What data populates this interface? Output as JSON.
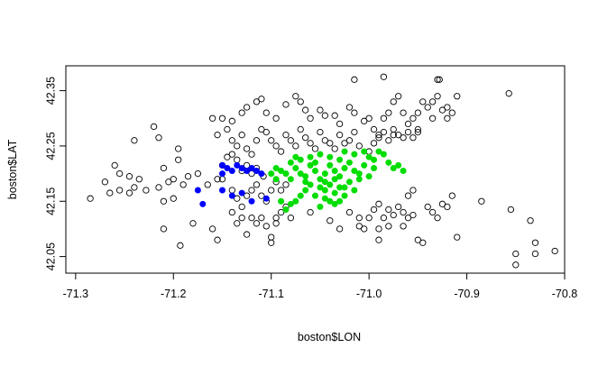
{
  "chart_data": {
    "type": "scatter",
    "title": "",
    "xlabel": "boston$LON",
    "ylabel": "boston$LAT",
    "xlim": [
      -71.31,
      -70.8
    ],
    "ylim": [
      42.02,
      42.395
    ],
    "xticks": [
      -71.3,
      -71.2,
      -71.1,
      -71.0,
      -70.9,
      -70.8
    ],
    "xtick_labels": [
      "-71.3",
      "-71.2",
      "-71.1",
      "-71.0",
      "-70.9",
      "-70.8"
    ],
    "yticks": [
      42.05,
      42.15,
      42.25,
      42.35
    ],
    "ytick_labels": [
      "42.05",
      "42.15",
      "42.25",
      "42.35"
    ],
    "grid": false,
    "legend": "none",
    "colors": {
      "open": "#000000",
      "blue": "#0000ff",
      "green": "#00dd00",
      "axis": "#000000"
    },
    "series": [
      {
        "style": "open",
        "points": [
          [
            -71.285,
            42.155
          ],
          [
            -71.265,
            42.165
          ],
          [
            -71.255,
            42.17
          ],
          [
            -71.27,
            42.185
          ],
          [
            -71.245,
            42.165
          ],
          [
            -71.24,
            42.175
          ],
          [
            -71.26,
            42.215
          ],
          [
            -71.245,
            42.195
          ],
          [
            -71.255,
            42.2
          ],
          [
            -71.235,
            42.19
          ],
          [
            -71.228,
            42.17
          ],
          [
            -71.215,
            42.175
          ],
          [
            -71.205,
            42.185
          ],
          [
            -71.2,
            42.19
          ],
          [
            -71.21,
            42.21
          ],
          [
            -71.195,
            42.225
          ],
          [
            -71.19,
            42.18
          ],
          [
            -71.175,
            42.2
          ],
          [
            -71.165,
            42.18
          ],
          [
            -71.155,
            42.19
          ],
          [
            -71.24,
            42.26
          ],
          [
            -71.22,
            42.285
          ],
          [
            -71.215,
            42.265
          ],
          [
            -71.195,
            42.245
          ],
          [
            -71.185,
            42.195
          ],
          [
            -71.2,
            42.155
          ],
          [
            -71.21,
            42.15
          ],
          [
            -71.18,
            42.11
          ],
          [
            -71.193,
            42.07
          ],
          [
            -71.21,
            42.1
          ],
          [
            -71.16,
            42.3
          ],
          [
            -71.15,
            42.3
          ],
          [
            -71.14,
            42.295
          ],
          [
            -71.13,
            42.31
          ],
          [
            -71.125,
            42.32
          ],
          [
            -71.115,
            42.33
          ],
          [
            -71.11,
            42.335
          ],
          [
            -71.105,
            42.31
          ],
          [
            -71.095,
            42.3
          ],
          [
            -71.085,
            42.325
          ],
          [
            -71.075,
            42.34
          ],
          [
            -71.07,
            42.33
          ],
          [
            -71.065,
            42.315
          ],
          [
            -71.06,
            42.3
          ],
          [
            -71.05,
            42.315
          ],
          [
            -71.045,
            42.305
          ],
          [
            -71.035,
            42.305
          ],
          [
            -71.03,
            42.29
          ],
          [
            -71.02,
            42.32
          ],
          [
            -71.015,
            42.31
          ],
          [
            -71.005,
            42.295
          ],
          [
            -70.995,
            42.28
          ],
          [
            -71.0,
            42.3
          ],
          [
            -70.985,
            42.3
          ],
          [
            -70.98,
            42.31
          ],
          [
            -70.975,
            42.33
          ],
          [
            -70.97,
            42.34
          ],
          [
            -70.965,
            42.31
          ],
          [
            -70.96,
            42.29
          ],
          [
            -70.955,
            42.3
          ],
          [
            -70.95,
            42.31
          ],
          [
            -70.945,
            42.33
          ],
          [
            -70.94,
            42.32
          ],
          [
            -70.935,
            42.33
          ],
          [
            -70.93,
            42.34
          ],
          [
            -70.925,
            42.315
          ],
          [
            -70.92,
            42.3
          ],
          [
            -70.915,
            42.31
          ],
          [
            -70.91,
            42.34
          ],
          [
            -70.928,
            42.37
          ],
          [
            -70.93,
            42.37
          ],
          [
            -70.985,
            42.375
          ],
          [
            -71.015,
            42.37
          ],
          [
            -70.92,
            42.32
          ],
          [
            -70.935,
            42.3
          ],
          [
            -70.95,
            42.28
          ],
          [
            -70.975,
            42.27
          ],
          [
            -70.99,
            42.27
          ],
          [
            -71.155,
            42.27
          ],
          [
            -71.145,
            42.28
          ],
          [
            -71.14,
            42.26
          ],
          [
            -71.135,
            42.25
          ],
          [
            -71.13,
            42.27
          ],
          [
            -71.125,
            42.245
          ],
          [
            -71.12,
            42.235
          ],
          [
            -71.115,
            42.26
          ],
          [
            -71.11,
            42.28
          ],
          [
            -71.105,
            42.275
          ],
          [
            -71.1,
            42.26
          ],
          [
            -71.095,
            42.25
          ],
          [
            -71.09,
            42.24
          ],
          [
            -71.085,
            42.27
          ],
          [
            -71.08,
            42.26
          ],
          [
            -71.075,
            42.25
          ],
          [
            -71.07,
            42.28
          ],
          [
            -71.065,
            42.265
          ],
          [
            -71.06,
            42.255
          ],
          [
            -71.055,
            42.245
          ],
          [
            -71.05,
            42.275
          ],
          [
            -71.045,
            42.26
          ],
          [
            -71.04,
            42.255
          ],
          [
            -71.035,
            42.245
          ],
          [
            -71.03,
            42.27
          ],
          [
            -71.025,
            42.255
          ],
          [
            -71.02,
            42.26
          ],
          [
            -71.015,
            42.275
          ],
          [
            -71.01,
            42.25
          ],
          [
            -71.0,
            42.24
          ],
          [
            -70.995,
            42.255
          ],
          [
            -70.99,
            42.265
          ],
          [
            -70.985,
            42.275
          ],
          [
            -70.98,
            42.26
          ],
          [
            -70.975,
            42.28
          ],
          [
            -70.97,
            42.27
          ],
          [
            -70.965,
            42.265
          ],
          [
            -70.96,
            42.275
          ],
          [
            -70.955,
            42.265
          ],
          [
            -70.95,
            42.275
          ],
          [
            -71.135,
            42.225
          ],
          [
            -71.14,
            42.235
          ],
          [
            -71.145,
            42.23
          ],
          [
            -71.15,
            42.215
          ],
          [
            -71.13,
            42.205
          ],
          [
            -71.125,
            42.215
          ],
          [
            -71.12,
            42.2
          ],
          [
            -71.115,
            42.21
          ],
          [
            -71.108,
            42.195
          ],
          [
            -71.15,
            42.19
          ],
          [
            -71.14,
            42.17
          ],
          [
            -71.135,
            42.155
          ],
          [
            -71.13,
            42.14
          ],
          [
            -71.125,
            42.16
          ],
          [
            -71.12,
            42.17
          ],
          [
            -71.115,
            42.18
          ],
          [
            -71.11,
            42.16
          ],
          [
            -71.105,
            42.15
          ],
          [
            -71.1,
            42.17
          ],
          [
            -71.095,
            42.185
          ],
          [
            -71.09,
            42.17
          ],
          [
            -71.085,
            42.18
          ],
          [
            -71.16,
            42.1
          ],
          [
            -71.155,
            42.08
          ],
          [
            -71.14,
            42.13
          ],
          [
            -71.135,
            42.11
          ],
          [
            -71.13,
            42.12
          ],
          [
            -71.125,
            42.09
          ],
          [
            -71.12,
            42.12
          ],
          [
            -71.11,
            42.12
          ],
          [
            -71.105,
            42.105
          ],
          [
            -71.1,
            42.085
          ],
          [
            -71.095,
            42.11
          ],
          [
            -71.09,
            42.13
          ],
          [
            -71.085,
            42.14
          ],
          [
            -71.08,
            42.12
          ],
          [
            -71.1,
            42.075
          ],
          [
            -71.06,
            42.13
          ],
          [
            -71.04,
            42.115
          ],
          [
            -71.02,
            42.13
          ],
          [
            -71.01,
            42.12
          ],
          [
            -71.005,
            42.1
          ],
          [
            -70.995,
            42.135
          ],
          [
            -70.99,
            42.145
          ],
          [
            -70.985,
            42.12
          ],
          [
            -70.98,
            42.135
          ],
          [
            -70.975,
            42.125
          ],
          [
            -70.97,
            42.14
          ],
          [
            -70.965,
            42.13
          ],
          [
            -70.96,
            42.12
          ],
          [
            -70.955,
            42.125
          ],
          [
            -70.95,
            42.08
          ],
          [
            -70.945,
            42.075
          ],
          [
            -70.94,
            42.14
          ],
          [
            -70.935,
            42.13
          ],
          [
            -70.93,
            42.12
          ],
          [
            -70.925,
            42.145
          ],
          [
            -70.92,
            42.14
          ],
          [
            -70.915,
            42.16
          ],
          [
            -70.91,
            42.085
          ],
          [
            -70.955,
            42.17
          ],
          [
            -70.96,
            42.16
          ],
          [
            -70.99,
            42.08
          ],
          [
            -71.0,
            42.12
          ],
          [
            -70.98,
            42.105
          ],
          [
            -71.01,
            42.105
          ],
          [
            -70.965,
            42.105
          ],
          [
            -70.885,
            42.15
          ],
          [
            -70.857,
            42.345
          ],
          [
            -70.855,
            42.135
          ],
          [
            -70.85,
            42.055
          ],
          [
            -70.85,
            42.035
          ],
          [
            -70.835,
            42.115
          ],
          [
            -70.83,
            42.075
          ],
          [
            -70.83,
            42.055
          ],
          [
            -70.81,
            42.06
          ],
          [
            -70.99,
            42.1
          ],
          [
            -71.03,
            42.1
          ],
          [
            -71.115,
            42.11
          ],
          [
            -71.095,
            42.12
          ]
        ]
      },
      {
        "style": "blue",
        "points": [
          [
            -71.15,
            42.2
          ],
          [
            -71.15,
            42.215
          ],
          [
            -71.145,
            42.21
          ],
          [
            -71.14,
            42.205
          ],
          [
            -71.135,
            42.215
          ],
          [
            -71.13,
            42.21
          ],
          [
            -71.125,
            42.205
          ],
          [
            -71.12,
            42.21
          ],
          [
            -71.115,
            42.205
          ],
          [
            -71.11,
            42.2
          ],
          [
            -71.175,
            42.17
          ],
          [
            -71.15,
            42.17
          ],
          [
            -71.14,
            42.16
          ],
          [
            -71.13,
            42.165
          ],
          [
            -71.12,
            42.15
          ],
          [
            -71.17,
            42.145
          ],
          [
            -71.105,
            42.155
          ]
        ]
      },
      {
        "style": "green",
        "points": [
          [
            -71.09,
            42.205
          ],
          [
            -71.085,
            42.2
          ],
          [
            -71.08,
            42.22
          ],
          [
            -71.075,
            42.21
          ],
          [
            -71.07,
            42.2
          ],
          [
            -71.065,
            42.195
          ],
          [
            -71.06,
            42.215
          ],
          [
            -71.055,
            42.205
          ],
          [
            -71.05,
            42.19
          ],
          [
            -71.045,
            42.2
          ],
          [
            -71.04,
            42.215
          ],
          [
            -71.035,
            42.205
          ],
          [
            -71.03,
            42.195
          ],
          [
            -71.025,
            42.21
          ],
          [
            -71.02,
            42.22
          ],
          [
            -71.015,
            42.205
          ],
          [
            -71.01,
            42.2
          ],
          [
            -71.005,
            42.215
          ],
          [
            -71.0,
            42.23
          ],
          [
            -70.995,
            42.225
          ],
          [
            -70.99,
            42.24
          ],
          [
            -70.985,
            42.235
          ],
          [
            -70.98,
            42.22
          ],
          [
            -70.975,
            42.21
          ],
          [
            -71.05,
            42.175
          ],
          [
            -71.045,
            42.17
          ],
          [
            -71.04,
            42.18
          ],
          [
            -71.035,
            42.165
          ],
          [
            -71.03,
            42.175
          ],
          [
            -71.06,
            42.18
          ],
          [
            -71.065,
            42.17
          ],
          [
            -71.055,
            42.16
          ],
          [
            -71.045,
            42.155
          ],
          [
            -71.04,
            42.15
          ],
          [
            -71.07,
            42.16
          ],
          [
            -71.075,
            42.15
          ],
          [
            -71.08,
            42.145
          ],
          [
            -71.085,
            42.135
          ],
          [
            -71.09,
            42.15
          ],
          [
            -71.095,
            42.19
          ],
          [
            -71.1,
            42.2
          ],
          [
            -71.095,
            42.21
          ],
          [
            -71.08,
            42.19
          ],
          [
            -71.06,
            42.23
          ],
          [
            -71.05,
            42.235
          ],
          [
            -71.04,
            42.23
          ],
          [
            -71.03,
            42.225
          ],
          [
            -71.015,
            42.235
          ],
          [
            -71.005,
            42.24
          ],
          [
            -71.025,
            42.24
          ],
          [
            -71.035,
            42.19
          ],
          [
            -71.02,
            42.185
          ],
          [
            -71.01,
            42.19
          ],
          [
            -71.055,
            42.22
          ],
          [
            -71.065,
            42.185
          ],
          [
            -71.07,
            42.225
          ],
          [
            -71.075,
            42.23
          ],
          [
            -71.045,
            42.185
          ],
          [
            -71.025,
            42.175
          ],
          [
            -71.015,
            42.17
          ],
          [
            -71.035,
            42.145
          ],
          [
            -71.05,
            42.14
          ],
          [
            -71.025,
            42.16
          ],
          [
            -71.03,
            42.15
          ],
          [
            -70.965,
            42.205
          ],
          [
            -70.97,
            42.215
          ],
          [
            -71.0,
            42.195
          ],
          [
            -70.995,
            42.21
          ]
        ]
      }
    ]
  }
}
